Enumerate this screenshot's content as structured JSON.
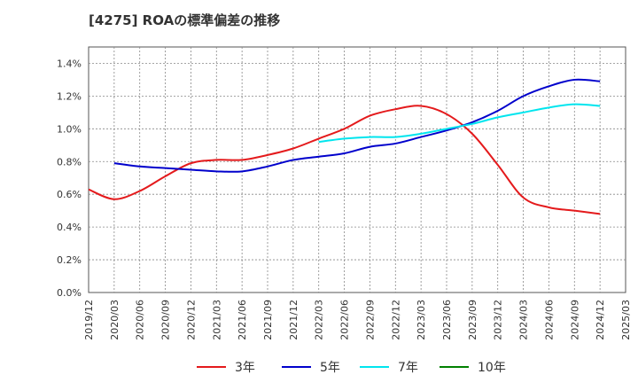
{
  "chart_data": {
    "type": "line",
    "title": "[4275]  ROAの標準偏差の推移",
    "xlabel": "",
    "ylabel": "",
    "ylim": [
      0,
      1.5
    ],
    "yticks": [
      "0.0%",
      "0.2%",
      "0.4%",
      "0.6%",
      "0.8%",
      "1.0%",
      "1.2%",
      "1.4%"
    ],
    "ytick_values": [
      0,
      0.2,
      0.4,
      0.6,
      0.8,
      1.0,
      1.2,
      1.4
    ],
    "x": [
      "2019/12",
      "2020/03",
      "2020/06",
      "2020/09",
      "2020/12",
      "2021/03",
      "2021/06",
      "2021/09",
      "2021/12",
      "2022/03",
      "2022/06",
      "2022/09",
      "2022/12",
      "2023/03",
      "2023/06",
      "2023/09",
      "2023/12",
      "2024/03",
      "2024/06",
      "2024/09",
      "2024/12",
      "2025/03"
    ],
    "grid": true,
    "legend_position": "bottom",
    "series": [
      {
        "name": "3年",
        "color": "#e41a1c",
        "values": [
          0.63,
          0.57,
          0.62,
          0.71,
          0.79,
          0.81,
          0.81,
          0.84,
          0.88,
          0.94,
          1.0,
          1.08,
          1.12,
          1.14,
          1.09,
          0.97,
          0.78,
          0.58,
          0.52,
          0.5,
          0.48,
          null
        ]
      },
      {
        "name": "5年",
        "color": "#0000cc",
        "values": [
          null,
          0.79,
          0.77,
          0.76,
          0.75,
          0.74,
          0.74,
          0.77,
          0.81,
          0.83,
          0.85,
          0.89,
          0.91,
          0.95,
          0.99,
          1.04,
          1.11,
          1.2,
          1.26,
          1.3,
          1.29,
          null
        ]
      },
      {
        "name": "7年",
        "color": "#00e5ee",
        "values": [
          null,
          null,
          null,
          null,
          null,
          null,
          null,
          null,
          null,
          0.92,
          0.94,
          0.95,
          0.95,
          0.97,
          1.0,
          1.03,
          1.07,
          1.1,
          1.13,
          1.15,
          1.14,
          null
        ]
      },
      {
        "name": "10年",
        "color": "#008000",
        "values": [
          null,
          null,
          null,
          null,
          null,
          null,
          null,
          null,
          null,
          null,
          null,
          null,
          null,
          null,
          null,
          null,
          null,
          null,
          null,
          null,
          null,
          null
        ]
      }
    ]
  }
}
